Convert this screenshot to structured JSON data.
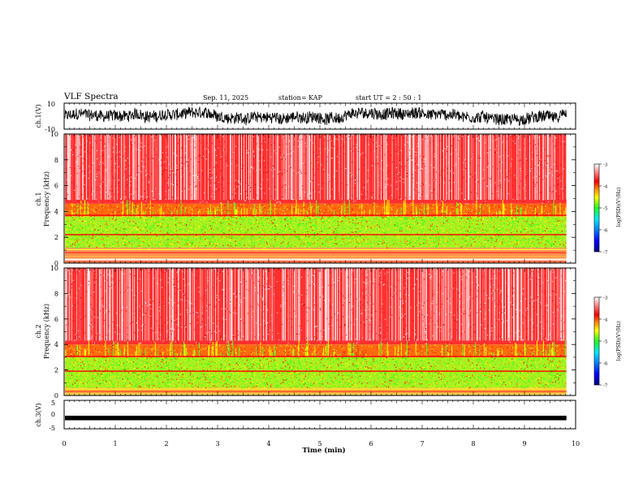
{
  "header": {
    "title": "VLF Spectra",
    "date": "Sep. 11, 2025",
    "station": "station= KAP",
    "start": "start  UT  =   2  : 50 : 1"
  },
  "chart_data": [
    {
      "type": "line",
      "name": "ch1-waveform",
      "ylabel": "ch.1(V)",
      "ylim": [
        -10,
        10
      ],
      "ytick_labels": [
        "10",
        "-10"
      ],
      "description_values": "dense waveform oscillating roughly between -6 and +7 V"
    },
    {
      "type": "heatmap",
      "name": "ch1-spectrogram",
      "ylabel": "ch.1\nFrequency (kHz)",
      "ylabel_parts": [
        "ch.1",
        "Frequency  (kHz)"
      ],
      "ylim": [
        0,
        10
      ],
      "ytick_labels": [
        "0",
        "2",
        "4",
        "6",
        "8",
        "10"
      ],
      "data_xlim_min": [
        0,
        9.82
      ],
      "bands": [
        {
          "from_khz": 0.0,
          "to_khz": 0.3,
          "level": "mixed-white"
        },
        {
          "from_khz": 0.3,
          "to_khz": 1.2,
          "level": "red-yellow"
        },
        {
          "from_khz": 1.2,
          "to_khz": 3.6,
          "level": "green-yellow"
        },
        {
          "from_khz": 2.2,
          "to_khz": 2.3,
          "level": "red-line"
        },
        {
          "from_khz": 3.6,
          "to_khz": 4.6,
          "level": "red-yellow-transition"
        },
        {
          "from_khz": 4.6,
          "to_khz": 10.0,
          "level": "red-white-speckle"
        }
      ],
      "colorbar": {
        "label": "log(PSD)(V²/Hz)",
        "ticks": [
          "-3",
          "-4",
          "-5",
          "-6",
          "-7"
        ],
        "range": [
          -7,
          -3
        ]
      }
    },
    {
      "type": "heatmap",
      "name": "ch2-spectrogram",
      "ylabel_parts": [
        "ch.2",
        "Frequency  (kHz)"
      ],
      "ylim": [
        0,
        10
      ],
      "ytick_labels": [
        "0",
        "2",
        "4",
        "6",
        "8",
        "10"
      ],
      "data_xlim_min": [
        0,
        9.82
      ],
      "bands": [
        {
          "from_khz": 0.0,
          "to_khz": 0.6,
          "level": "yellow-red"
        },
        {
          "from_khz": 0.6,
          "to_khz": 3.0,
          "level": "green-yellow"
        },
        {
          "from_khz": 1.9,
          "to_khz": 2.0,
          "level": "red-line"
        },
        {
          "from_khz": 3.0,
          "to_khz": 4.0,
          "level": "red-yellow-transition"
        },
        {
          "from_khz": 4.0,
          "to_khz": 10.0,
          "level": "red-white-speckle"
        }
      ],
      "colorbar": {
        "label": "log(PSD)(V²/Hz)",
        "ticks": [
          "-3",
          "-4",
          "-5",
          "-6",
          "-7"
        ],
        "range": [
          -7,
          -3
        ]
      }
    },
    {
      "type": "line",
      "name": "ch3-waveform",
      "ylabel": "ch.3(V)",
      "ylim": [
        -5,
        5
      ],
      "ytick_labels": [
        "5",
        "0",
        "-5"
      ],
      "level_v": -1.2
    }
  ],
  "xaxis": {
    "label": "Time  (min)",
    "xlim": [
      0,
      10
    ],
    "tick_labels": [
      "0",
      "1",
      "2",
      "3",
      "4",
      "5",
      "6",
      "7",
      "8",
      "9",
      "10"
    ]
  },
  "colormap": [
    "#000080",
    "#0000ff",
    "#0080ff",
    "#00e0ff",
    "#20ff20",
    "#ffff00",
    "#ff8000",
    "#ff0000",
    "#ffffff"
  ]
}
